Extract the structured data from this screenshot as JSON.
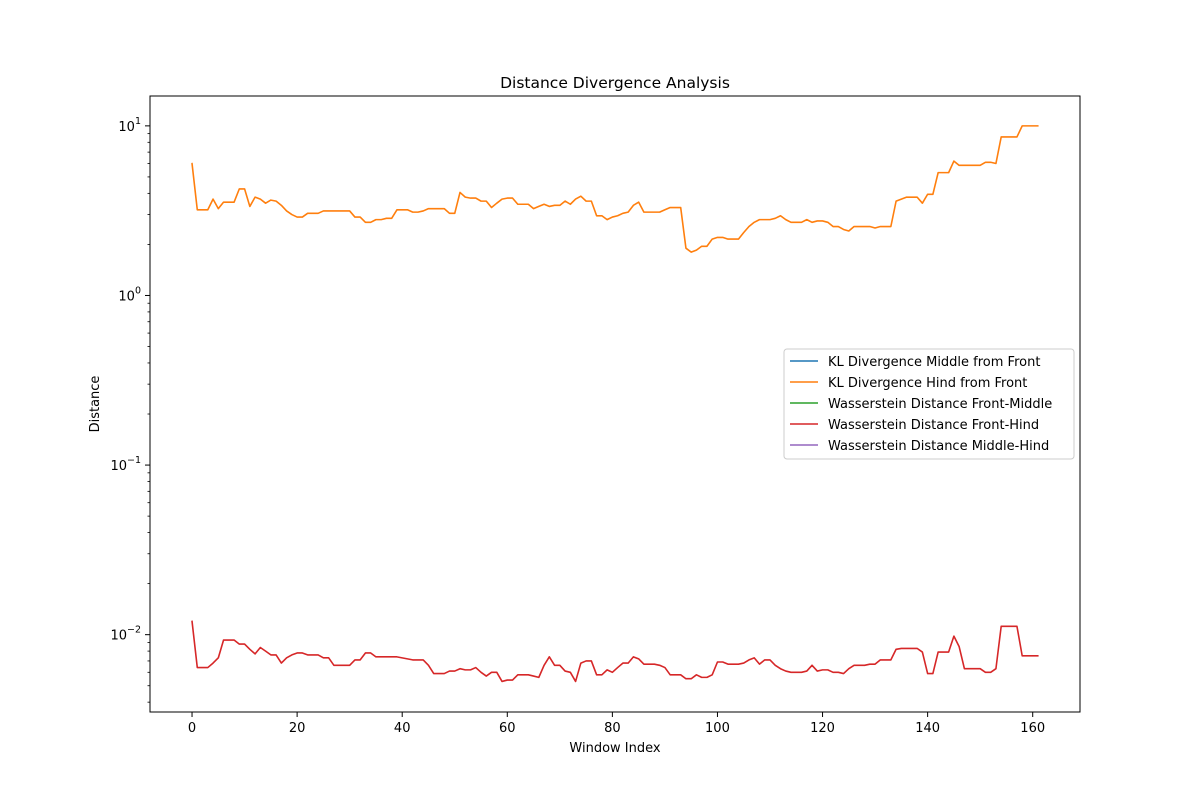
{
  "chart_data": {
    "type": "line",
    "title": "Distance Divergence Analysis",
    "xlabel": "Window Index",
    "ylabel": "Distance",
    "yscale": "log",
    "xlim": [
      -8,
      169
    ],
    "ylim": [
      0.0035,
      15
    ],
    "xticks": [
      0,
      20,
      40,
      60,
      80,
      100,
      120,
      140,
      160
    ],
    "yticks": [
      {
        "value": 10,
        "label_base": "10",
        "label_exp": "1"
      },
      {
        "value": 1,
        "label_base": "10",
        "label_exp": "0"
      },
      {
        "value": 0.1,
        "label_base": "10",
        "label_exp": "−1"
      },
      {
        "value": 0.01,
        "label_base": "10",
        "label_exp": "−2"
      }
    ],
    "grid": false,
    "legend_position": "center-right",
    "x_start": 0,
    "series": [
      {
        "name": "KL Divergence Middle from Front",
        "color": "#1f77b4",
        "values": []
      },
      {
        "name": "KL Divergence Hind from Front",
        "color": "#ff7f0e",
        "values": [
          6.0,
          3.2,
          3.2,
          3.2,
          3.7,
          3.25,
          3.55,
          3.55,
          3.55,
          4.25,
          4.25,
          3.35,
          3.8,
          3.7,
          3.5,
          3.65,
          3.6,
          3.4,
          3.15,
          3.0,
          2.9,
          2.9,
          3.05,
          3.05,
          3.05,
          3.15,
          3.15,
          3.15,
          3.15,
          3.15,
          3.15,
          2.9,
          2.9,
          2.7,
          2.7,
          2.8,
          2.8,
          2.85,
          2.85,
          3.2,
          3.2,
          3.2,
          3.1,
          3.1,
          3.15,
          3.25,
          3.25,
          3.25,
          3.25,
          3.05,
          3.05,
          4.05,
          3.8,
          3.75,
          3.75,
          3.6,
          3.6,
          3.3,
          3.5,
          3.7,
          3.75,
          3.75,
          3.45,
          3.45,
          3.45,
          3.25,
          3.35,
          3.45,
          3.35,
          3.4,
          3.4,
          3.6,
          3.45,
          3.7,
          3.85,
          3.6,
          3.6,
          2.95,
          2.95,
          2.8,
          2.9,
          2.95,
          3.05,
          3.1,
          3.4,
          3.55,
          3.1,
          3.1,
          3.1,
          3.1,
          3.2,
          3.3,
          3.3,
          3.3,
          1.9,
          1.8,
          1.85,
          1.95,
          1.95,
          2.15,
          2.2,
          2.2,
          2.15,
          2.15,
          2.15,
          2.35,
          2.55,
          2.7,
          2.8,
          2.8,
          2.8,
          2.85,
          2.95,
          2.8,
          2.7,
          2.7,
          2.7,
          2.8,
          2.7,
          2.75,
          2.75,
          2.7,
          2.55,
          2.55,
          2.45,
          2.4,
          2.55,
          2.55,
          2.55,
          2.55,
          2.5,
          2.55,
          2.55,
          2.55,
          3.6,
          3.7,
          3.8,
          3.8,
          3.8,
          3.5,
          3.95,
          3.95,
          5.3,
          5.3,
          5.3,
          6.2,
          5.85,
          5.85,
          5.85,
          5.85,
          5.85,
          6.1,
          6.1,
          6.0,
          8.6,
          8.6,
          8.6,
          8.6,
          10.0,
          10.0,
          10.0,
          10.0
        ]
      },
      {
        "name": "Wasserstein Distance Front-Middle",
        "color": "#2ca02c",
        "values": []
      },
      {
        "name": "Wasserstein Distance Front-Hind",
        "color": "#d62728",
        "values": [
          0.012,
          0.0064,
          0.0064,
          0.0064,
          0.0068,
          0.0073,
          0.0093,
          0.0093,
          0.0093,
          0.0088,
          0.0088,
          0.0082,
          0.0077,
          0.0084,
          0.008,
          0.0076,
          0.0076,
          0.0068,
          0.0073,
          0.0076,
          0.0078,
          0.0078,
          0.0076,
          0.0076,
          0.0076,
          0.0073,
          0.0073,
          0.0066,
          0.0066,
          0.0066,
          0.0066,
          0.0071,
          0.0071,
          0.0078,
          0.0078,
          0.0074,
          0.0074,
          0.0074,
          0.0074,
          0.0074,
          0.0073,
          0.0072,
          0.0071,
          0.0071,
          0.0071,
          0.0066,
          0.0059,
          0.0059,
          0.0059,
          0.0061,
          0.0061,
          0.0063,
          0.0062,
          0.0062,
          0.0064,
          0.006,
          0.0057,
          0.006,
          0.006,
          0.0053,
          0.0054,
          0.0054,
          0.0058,
          0.0058,
          0.0058,
          0.0057,
          0.0056,
          0.0066,
          0.0074,
          0.0066,
          0.0066,
          0.0061,
          0.006,
          0.0053,
          0.0068,
          0.007,
          0.007,
          0.0058,
          0.0058,
          0.0062,
          0.006,
          0.0064,
          0.0068,
          0.0068,
          0.0074,
          0.0072,
          0.0067,
          0.0067,
          0.0067,
          0.0066,
          0.0064,
          0.0058,
          0.0058,
          0.0058,
          0.0055,
          0.0055,
          0.0058,
          0.0056,
          0.0056,
          0.0058,
          0.0069,
          0.0069,
          0.0067,
          0.0067,
          0.0067,
          0.0068,
          0.0071,
          0.0073,
          0.0067,
          0.0071,
          0.0071,
          0.0066,
          0.0063,
          0.0061,
          0.006,
          0.006,
          0.006,
          0.0061,
          0.0066,
          0.0061,
          0.0062,
          0.0062,
          0.006,
          0.006,
          0.0059,
          0.0063,
          0.0066,
          0.0066,
          0.0066,
          0.0067,
          0.0067,
          0.0071,
          0.0071,
          0.0071,
          0.0082,
          0.0083,
          0.0083,
          0.0083,
          0.0083,
          0.0079,
          0.0059,
          0.0059,
          0.0079,
          0.0079,
          0.0079,
          0.0098,
          0.0085,
          0.0063,
          0.0063,
          0.0063,
          0.0063,
          0.006,
          0.006,
          0.0063,
          0.0112,
          0.0112,
          0.0112,
          0.0112,
          0.0075,
          0.0075,
          0.0075,
          0.0075
        ]
      },
      {
        "name": "Wasserstein Distance Middle-Hind",
        "color": "#9467bd",
        "values": []
      }
    ]
  }
}
